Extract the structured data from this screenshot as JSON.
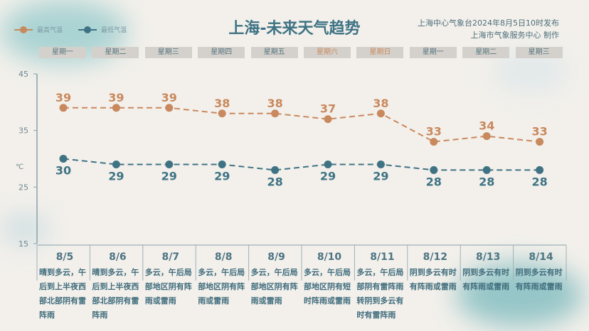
{
  "title": "上海-未来天气趋势",
  "source_line1": "上海中心气象台2024年8月5日10时发布",
  "source_line2": "上海市气象服务中心 制作",
  "colors": {
    "high": "#c9895e",
    "low": "#3f7384",
    "weekend": "#c9895e"
  },
  "weekdays": [
    "星期一",
    "星期二",
    "星期三",
    "星期四",
    "星期五",
    "星期六",
    "星期日",
    "星期一",
    "星期二",
    "星期三"
  ],
  "chart_data": {
    "type": "line",
    "categories": [
      "8/5",
      "8/6",
      "8/7",
      "8/8",
      "8/9",
      "8/10",
      "8/11",
      "8/12",
      "8/13",
      "8/14"
    ],
    "series": [
      {
        "name": "最高气温",
        "values": [
          39,
          39,
          39,
          38,
          38,
          37,
          38,
          33,
          34,
          33
        ]
      },
      {
        "name": "最低气温",
        "values": [
          30,
          29,
          29,
          29,
          28,
          29,
          29,
          28,
          28,
          28
        ]
      }
    ],
    "ylabel": "℃",
    "ylim": [
      15,
      45
    ],
    "yticks": [
      15,
      25,
      35,
      45
    ],
    "legend": "top-left",
    "grid": false
  },
  "weather": [
    "晴到多云，午后到上半夜西部北部阴有雷阵雨",
    "晴到多云，午后到上半夜西部北部阴有雷阵雨",
    "多云，午后局部地区阴有阵雨或雷雨",
    "多云，午后局部地区阴有阵雨或雷雨",
    "多云，午后局部地区阴有阵雨或雷雨",
    "多云，午后局部地区阴有短时阵雨或雷雨",
    "多云，午后局部阴有雷阵雨转阴到多云有时有雷阵雨",
    "阴到多云有时有阵雨或雷雨",
    "阴到多云有时有阵雨或雷雨",
    "阴到多云有时有阵雨或雷雨"
  ]
}
